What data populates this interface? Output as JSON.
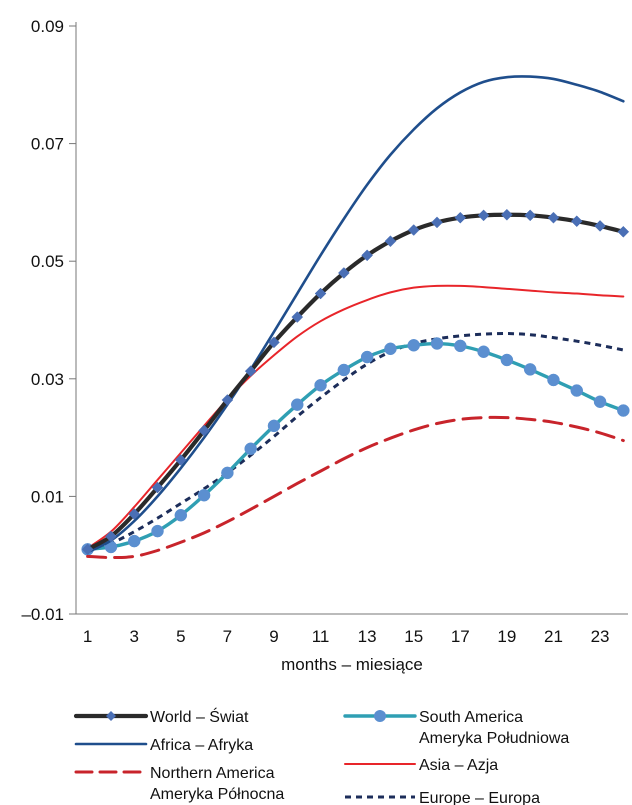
{
  "chart_data": {
    "type": "line",
    "title": "",
    "xlabel": "months – miesiące",
    "ylabel": "",
    "xlim": [
      0.5,
      24.2
    ],
    "ylim": [
      -0.01,
      0.09
    ],
    "x_ticks": [
      1,
      3,
      5,
      7,
      9,
      11,
      13,
      15,
      17,
      19,
      21,
      23
    ],
    "x_tick_labels": [
      "1",
      "3",
      "5",
      "7",
      "9",
      "11",
      "13",
      "15",
      "17",
      "19",
      "21",
      "23"
    ],
    "y_ticks": [
      -0.01,
      0.01,
      0.03,
      0.05,
      0.07,
      0.09
    ],
    "y_tick_labels": [
      "–0.01",
      "0.01",
      "0.03",
      "0.05",
      "0.07",
      "0.09"
    ],
    "grid": false,
    "legend_position": "bottom",
    "x": [
      1,
      2,
      3,
      4,
      5,
      6,
      7,
      8,
      9,
      10,
      11,
      12,
      13,
      14,
      15,
      16,
      17,
      18,
      19,
      20,
      21,
      22,
      23,
      24
    ],
    "series": [
      {
        "name": "World – Świat",
        "legend_lines": [
          "World – Świat"
        ],
        "color": "#2a2a2a",
        "marker_color": "#4a6fb5",
        "style": "solid",
        "marker": "diamond",
        "width": 4.2,
        "values": [
          0.001,
          0.0032,
          0.007,
          0.0115,
          0.0162,
          0.0212,
          0.0264,
          0.0313,
          0.0362,
          0.0405,
          0.0445,
          0.048,
          0.051,
          0.0534,
          0.0553,
          0.0566,
          0.0574,
          0.0578,
          0.0579,
          0.0578,
          0.0574,
          0.0568,
          0.056,
          0.055
        ]
      },
      {
        "name": "Africa – Afryka",
        "legend_lines": [
          "Africa – Afryka"
        ],
        "color": "#1f4e8c",
        "marker_color": "",
        "style": "solid",
        "marker": "none",
        "width": 2.6,
        "values": [
          0.0005,
          0.0025,
          0.0058,
          0.01,
          0.0148,
          0.02,
          0.0256,
          0.0316,
          0.038,
          0.0445,
          0.051,
          0.0572,
          0.063,
          0.0681,
          0.0724,
          0.076,
          0.0787,
          0.0805,
          0.0813,
          0.0814,
          0.081,
          0.08,
          0.0788,
          0.0772
        ]
      },
      {
        "name": "Northern America Ameryka Północna",
        "legend_lines": [
          "Northern America",
          "Ameryka Północna"
        ],
        "color": "#c8242b",
        "marker_color": "",
        "style": "dash",
        "marker": "none",
        "width": 3,
        "values": [
          -0.0002,
          -0.0004,
          -0.0002,
          0.0008,
          0.0022,
          0.0038,
          0.0057,
          0.0078,
          0.01,
          0.0122,
          0.0143,
          0.0164,
          0.0183,
          0.0199,
          0.0213,
          0.0224,
          0.0231,
          0.0234,
          0.0234,
          0.0231,
          0.0226,
          0.0218,
          0.0208,
          0.0195
        ]
      },
      {
        "name": "South America Ameryka Południowa",
        "legend_lines": [
          "South America",
          "Ameryka Południowa"
        ],
        "color": "#2f9fb3",
        "marker_color": "#5b8fd0",
        "style": "solid",
        "marker": "circle",
        "width": 3.4,
        "values": [
          0.001,
          0.0014,
          0.0024,
          0.0041,
          0.0068,
          0.0102,
          0.014,
          0.0181,
          0.022,
          0.0256,
          0.0289,
          0.0315,
          0.0337,
          0.0351,
          0.0357,
          0.036,
          0.0356,
          0.0346,
          0.0332,
          0.0316,
          0.0298,
          0.028,
          0.0261,
          0.0246
        ]
      },
      {
        "name": "Asia – Azja",
        "legend_lines": [
          "Asia – Azja"
        ],
        "color": "#e8252a",
        "marker_color": "",
        "style": "solid",
        "marker": "none",
        "width": 2,
        "values": [
          0.0012,
          0.004,
          0.0082,
          0.0128,
          0.0174,
          0.022,
          0.0265,
          0.0305,
          0.034,
          0.0372,
          0.0398,
          0.0418,
          0.0434,
          0.0447,
          0.0455,
          0.0458,
          0.0458,
          0.0456,
          0.0453,
          0.045,
          0.0447,
          0.0445,
          0.0442,
          0.044
        ]
      },
      {
        "name": "Europe – Europa",
        "legend_lines": [
          "Europe – Europa"
        ],
        "color": "#1c2d5a",
        "marker_color": "",
        "style": "dot",
        "marker": "none",
        "width": 3,
        "values": [
          0.0008,
          0.002,
          0.004,
          0.0063,
          0.0088,
          0.0113,
          0.014,
          0.017,
          0.0202,
          0.0236,
          0.0268,
          0.0298,
          0.0325,
          0.0346,
          0.036,
          0.0368,
          0.0373,
          0.0376,
          0.0377,
          0.0375,
          0.037,
          0.0364,
          0.0357,
          0.0349
        ]
      }
    ]
  }
}
